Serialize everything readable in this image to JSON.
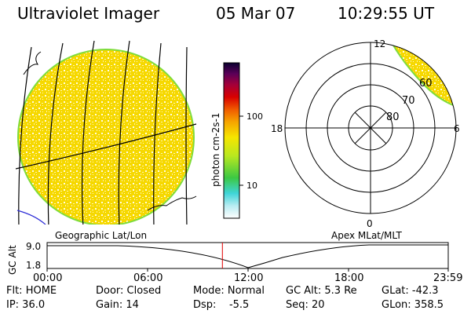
{
  "header": {
    "instrument": "Ultraviolet Imager",
    "date": "05 Mar 07",
    "time": "10:29:55 UT"
  },
  "colorbar": {
    "unit_label": "photon cm-2s-1",
    "ticks": [
      "100",
      "10"
    ]
  },
  "left_panel": {
    "label": "Geographic Lat/Lon"
  },
  "polar_panel": {
    "label": "Apex MLat/MLT",
    "mlt_labels": {
      "top": "12",
      "left": "18",
      "right": "6",
      "bottom": "0"
    },
    "lat_labels": [
      "60",
      "70",
      "80"
    ]
  },
  "timeline": {
    "axis_title": "GC Alt",
    "y_ticks": [
      "9.0",
      "1.8"
    ],
    "x_ticks": [
      "00:00",
      "06:00",
      "12:00",
      "18:00",
      "23:59"
    ],
    "current_time_fraction": 0.437,
    "marker_color": "#e00000"
  },
  "status": {
    "flt": "Flt: HOME",
    "ip": "IP: 36.0",
    "door": "Door: Closed",
    "gain": "Gain: 14",
    "mode": "Mode: Normal",
    "dsp": "Dsp:    -5.5",
    "gcalt": "GC Alt: 5.3 Re",
    "seq": "Seq: 20",
    "glat": "GLat: -42.3",
    "glon": "GLon: 358.5"
  },
  "colors": {
    "emission": "#f5d400",
    "rim": "#7fdc3c",
    "coast": "#2b2bd6"
  }
}
